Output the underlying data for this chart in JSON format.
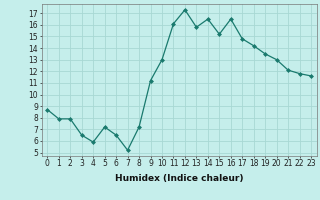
{
  "x": [
    0,
    1,
    2,
    3,
    4,
    5,
    6,
    7,
    8,
    9,
    10,
    11,
    12,
    13,
    14,
    15,
    16,
    17,
    18,
    19,
    20,
    21,
    22,
    23
  ],
  "y": [
    8.7,
    7.9,
    7.9,
    6.5,
    5.9,
    7.2,
    6.5,
    5.2,
    7.2,
    11.2,
    13.0,
    16.1,
    17.3,
    15.8,
    16.5,
    15.2,
    16.5,
    14.8,
    14.2,
    13.5,
    13.0,
    12.1,
    11.8,
    11.6
  ],
  "xlabel": "Humidex (Indice chaleur)",
  "line_color": "#1a7a6e",
  "marker": "D",
  "marker_size": 2.0,
  "bg_color": "#c5eeeb",
  "grid_color": "#a8d8d4",
  "xlim": [
    -0.5,
    23.5
  ],
  "ylim": [
    4.7,
    17.8
  ],
  "xticks": [
    0,
    1,
    2,
    3,
    4,
    5,
    6,
    7,
    8,
    9,
    10,
    11,
    12,
    13,
    14,
    15,
    16,
    17,
    18,
    19,
    20,
    21,
    22,
    23
  ],
  "yticks": [
    5,
    6,
    7,
    8,
    9,
    10,
    11,
    12,
    13,
    14,
    15,
    16,
    17
  ],
  "tick_fontsize": 5.5,
  "xlabel_fontsize": 6.5
}
